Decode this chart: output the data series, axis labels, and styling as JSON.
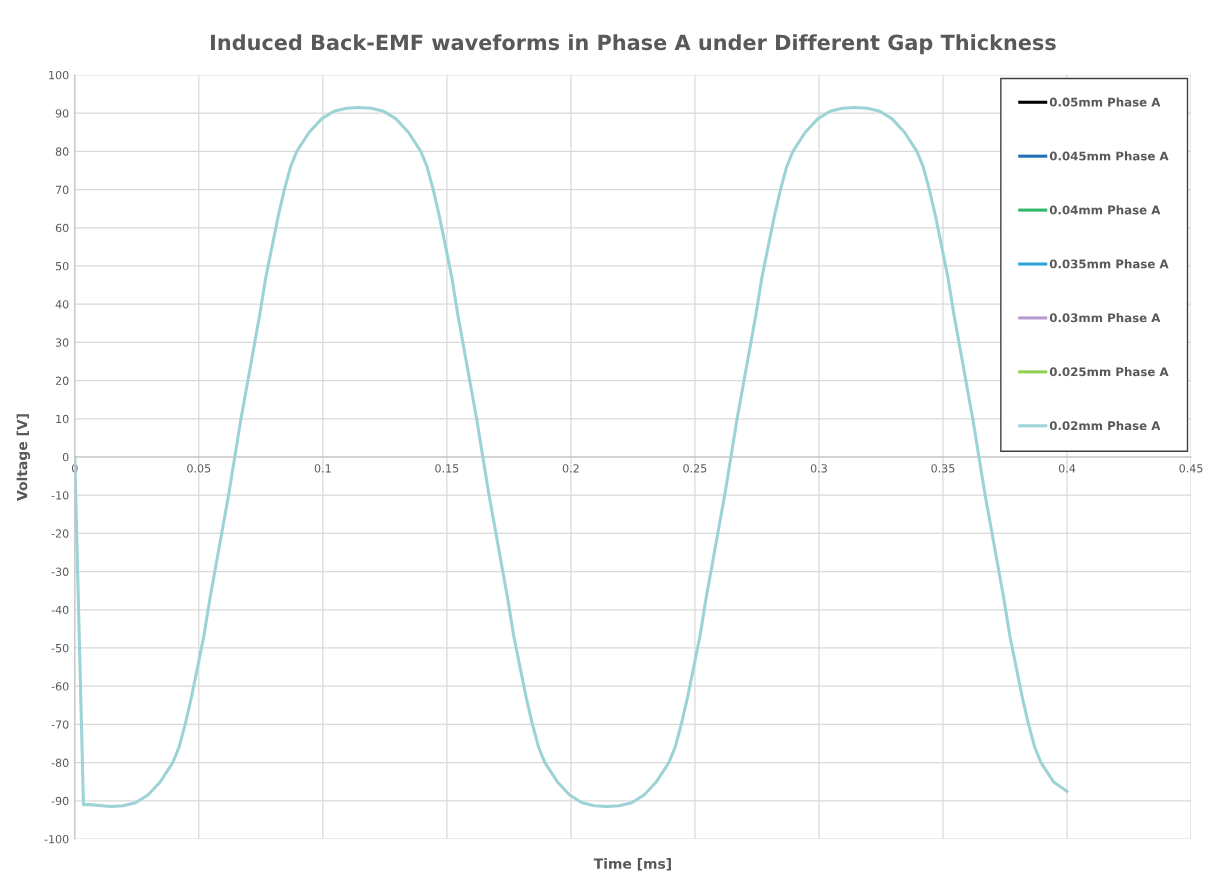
{
  "chart_data": {
    "type": "line",
    "title": "Induced Back-EMF waveforms in Phase A under Different Gap Thickness",
    "xlabel": "Time [ms]",
    "ylabel": "Voltage [V]",
    "x": [
      0,
      0.0035,
      0.006,
      0.0145,
      0.0195,
      0.0245,
      0.0295,
      0.0345,
      0.0395,
      0.042,
      0.0445,
      0.047,
      0.0495,
      0.052,
      0.0545,
      0.057,
      0.0595,
      0.062,
      0.0645,
      0.067,
      0.0695,
      0.072,
      0.0745,
      0.077,
      0.0795,
      0.082,
      0.0845,
      0.087,
      0.0895,
      0.0945,
      0.0995,
      0.1045,
      0.1095,
      0.1145,
      0.1195,
      0.1245,
      0.1295,
      0.1345,
      0.1395,
      0.142,
      0.1445,
      0.147,
      0.1495,
      0.152,
      0.1545,
      0.157,
      0.1595,
      0.162,
      0.1645,
      0.167,
      0.1695,
      0.172,
      0.1745,
      0.177,
      0.1795,
      0.182,
      0.1845,
      0.187,
      0.1895,
      0.1945,
      0.1995,
      0.2045,
      0.2095,
      0.2145,
      0.2195,
      0.2245,
      0.2295,
      0.2345,
      0.2395,
      0.242,
      0.2445,
      0.247,
      0.2495,
      0.252,
      0.2545,
      0.257,
      0.2595,
      0.262,
      0.2645,
      0.267,
      0.2695,
      0.272,
      0.2745,
      0.277,
      0.2795,
      0.282,
      0.2845,
      0.287,
      0.2895,
      0.2945,
      0.2995,
      0.3045,
      0.3095,
      0.3145,
      0.3195,
      0.3245,
      0.3295,
      0.3345,
      0.3395,
      0.342,
      0.3445,
      0.347,
      0.3495,
      0.352,
      0.3545,
      0.357,
      0.3595,
      0.362,
      0.3645,
      0.367,
      0.3695,
      0.372,
      0.3745,
      0.377,
      0.3795,
      0.382,
      0.3845,
      0.387,
      0.3895,
      0.3945,
      0.4
    ],
    "series": [
      {
        "name": "0.05mm Phase A",
        "color": "#000000",
        "values": [
          null,
          null,
          null,
          null,
          null,
          null,
          null,
          null,
          null,
          null,
          null,
          null,
          null,
          null,
          null,
          null,
          null,
          null,
          null,
          null,
          null,
          null,
          null,
          null,
          null,
          null,
          null,
          null,
          null,
          null,
          null,
          null,
          null,
          null,
          null,
          null,
          null,
          null,
          null,
          null,
          null,
          null,
          null,
          null,
          null,
          null,
          null,
          null,
          null,
          null,
          null,
          null,
          null,
          null,
          null,
          null,
          null,
          null,
          null,
          null,
          null,
          null,
          null,
          null,
          null,
          null,
          null,
          null,
          null,
          null,
          null,
          null,
          null,
          null,
          null,
          null,
          null,
          null,
          null,
          null,
          null,
          null,
          null,
          null,
          null,
          null,
          null,
          null,
          null,
          null,
          null,
          null,
          null,
          null,
          null,
          null,
          null,
          null,
          null,
          null,
          null,
          null,
          null,
          null,
          null,
          null,
          null,
          null,
          null,
          null,
          null,
          null,
          null,
          null,
          null,
          null,
          null,
          null,
          null,
          null,
          null
        ]
      },
      {
        "name": "0.045mm Phase A",
        "color": "#1f6fb4",
        "values": [
          null,
          null,
          null,
          null,
          null,
          null,
          null,
          null,
          null,
          null,
          null,
          null,
          null,
          null,
          null,
          null,
          null,
          null,
          null,
          null,
          null,
          null,
          null,
          null,
          null,
          null,
          null,
          null,
          null,
          null,
          null,
          null,
          null,
          null,
          null,
          null,
          null,
          null,
          null,
          null,
          null,
          null,
          null,
          null,
          null,
          null,
          null,
          null,
          null,
          null,
          null,
          null,
          null,
          null,
          null,
          null,
          null,
          null,
          null,
          null,
          null,
          null,
          null,
          null,
          null,
          null,
          null,
          null,
          null,
          null,
          null,
          null,
          null,
          null,
          null,
          null,
          null,
          null,
          null,
          null,
          null,
          null,
          null,
          null,
          null,
          null,
          null,
          null,
          null,
          null,
          null,
          null,
          null,
          null,
          null,
          null,
          null,
          null,
          null,
          null,
          null,
          null,
          null,
          null,
          null,
          null,
          null,
          null,
          null,
          null,
          null,
          null,
          null,
          null,
          null,
          null,
          null,
          null,
          null,
          null,
          null
        ]
      },
      {
        "name": "0.04mm Phase A",
        "color": "#2fb866",
        "values": [
          null,
          null,
          null,
          null,
          null,
          null,
          null,
          null,
          null,
          null,
          null,
          null,
          null,
          null,
          null,
          null,
          null,
          null,
          null,
          null,
          null,
          null,
          null,
          null,
          null,
          null,
          null,
          null,
          null,
          null,
          null,
          null,
          null,
          null,
          null,
          null,
          null,
          null,
          null,
          null,
          null,
          null,
          null,
          null,
          null,
          null,
          null,
          null,
          null,
          null,
          null,
          null,
          null,
          null,
          null,
          null,
          null,
          null,
          null,
          null,
          null,
          null,
          null,
          null,
          null,
          null,
          null,
          null,
          null,
          null,
          null,
          null,
          null,
          null,
          null,
          null,
          null,
          null,
          null,
          null,
          null,
          null,
          null,
          null,
          null,
          null,
          null,
          null,
          null,
          null,
          null,
          null,
          null,
          null,
          null,
          null,
          null,
          null,
          null,
          null,
          null,
          null,
          null,
          null,
          null,
          null,
          null,
          null,
          null,
          null,
          null,
          null,
          null,
          null,
          null,
          null,
          null,
          null,
          null,
          null,
          null
        ]
      },
      {
        "name": "0.035mm Phase A",
        "color": "#2ea3da",
        "values": [
          null,
          null,
          null,
          null,
          null,
          null,
          null,
          null,
          null,
          null,
          null,
          null,
          null,
          null,
          null,
          null,
          null,
          null,
          null,
          null,
          null,
          null,
          null,
          null,
          null,
          null,
          null,
          null,
          null,
          null,
          null,
          null,
          null,
          null,
          null,
          null,
          null,
          null,
          null,
          null,
          null,
          null,
          null,
          null,
          null,
          null,
          null,
          null,
          null,
          null,
          null,
          null,
          null,
          null,
          null,
          null,
          null,
          null,
          null,
          null,
          null,
          null,
          null,
          null,
          null,
          null,
          null,
          null,
          null,
          null,
          null,
          null,
          null,
          null,
          null,
          null,
          null,
          null,
          null,
          null,
          null,
          null,
          null,
          null,
          null,
          null,
          null,
          null,
          null,
          null,
          null,
          null,
          null,
          null,
          null,
          null,
          null,
          null,
          null,
          null,
          null,
          null,
          null,
          null,
          null,
          null,
          null,
          null,
          null,
          null,
          null,
          null,
          null,
          null,
          null,
          null,
          null,
          null,
          null,
          null,
          null
        ]
      },
      {
        "name": "0.03mm Phase A",
        "color": "#b59ad0",
        "values": [
          null,
          null,
          null,
          null,
          null,
          null,
          null,
          null,
          null,
          null,
          null,
          null,
          null,
          null,
          null,
          null,
          null,
          null,
          null,
          null,
          null,
          null,
          null,
          null,
          null,
          null,
          null,
          null,
          null,
          null,
          null,
          null,
          null,
          null,
          null,
          null,
          null,
          null,
          null,
          null,
          null,
          null,
          null,
          null,
          null,
          null,
          null,
          null,
          null,
          null,
          null,
          null,
          null,
          null,
          null,
          null,
          null,
          null,
          null,
          null,
          null,
          null,
          null,
          null,
          null,
          null,
          null,
          null,
          null,
          null,
          null,
          null,
          null,
          null,
          null,
          null,
          null,
          null,
          null,
          null,
          null,
          null,
          null,
          null,
          null,
          null,
          null,
          null,
          null,
          null,
          null,
          null,
          null,
          null,
          null,
          null,
          null,
          null,
          null,
          null,
          null,
          null,
          null,
          null,
          null,
          null,
          null,
          null,
          null,
          null,
          null,
          null,
          null,
          null,
          null,
          null,
          null,
          null,
          null,
          null,
          null
        ]
      },
      {
        "name": "0.025mm Phase A",
        "color": "#8fd14f",
        "values": [
          null,
          null,
          null,
          null,
          null,
          null,
          null,
          null,
          null,
          null,
          null,
          null,
          null,
          null,
          null,
          null,
          null,
          null,
          null,
          null,
          null,
          null,
          null,
          null,
          null,
          null,
          null,
          null,
          null,
          null,
          null,
          null,
          null,
          null,
          null,
          null,
          null,
          null,
          null,
          null,
          null,
          null,
          null,
          null,
          null,
          null,
          null,
          null,
          null,
          null,
          null,
          null,
          null,
          null,
          null,
          null,
          null,
          null,
          null,
          null,
          null,
          null,
          null,
          null,
          null,
          null,
          null,
          null,
          null,
          null,
          null,
          null,
          null,
          null,
          null,
          null,
          null,
          null,
          null,
          null,
          null,
          null,
          null,
          null,
          null,
          null,
          null,
          null,
          null,
          null,
          null,
          null,
          null,
          null,
          null,
          null,
          null,
          null,
          null,
          null,
          null,
          null,
          null,
          null,
          null,
          null,
          null,
          null,
          null,
          null,
          null,
          null,
          null,
          null,
          null,
          null,
          null,
          null,
          null,
          null,
          null
        ]
      },
      {
        "name": "0.02mm Phase A",
        "color": "#9dd3d6",
        "values": [
          0,
          -91,
          -91,
          -91.5,
          -91.3,
          -90.5,
          -88.5,
          -85,
          -80,
          -76,
          -70,
          -63,
          -55,
          -47,
          -37,
          -28,
          -19,
          -10,
          0,
          10,
          19,
          28,
          37,
          47,
          55,
          63,
          70,
          76,
          80,
          85,
          88.5,
          90.5,
          91.3,
          91.5,
          91.3,
          90.5,
          88.5,
          85,
          80,
          76,
          70,
          63,
          55,
          47,
          37,
          28,
          19,
          10,
          0,
          -10,
          -19,
          -28,
          -37,
          -47,
          -55,
          -63,
          -70,
          -76,
          -80,
          -85,
          -88.5,
          -90.5,
          -91.3,
          -91.5,
          -91.3,
          -90.5,
          -88.5,
          -85,
          -80,
          -76,
          -70,
          -63,
          -55,
          -47,
          -37,
          -28,
          -19,
          -10,
          0,
          10,
          19,
          28,
          37,
          47,
          55,
          63,
          70,
          76,
          80,
          85,
          88.5,
          90.5,
          91.3,
          91.5,
          91.3,
          90.5,
          88.5,
          85,
          80,
          76,
          70,
          63,
          55,
          47,
          37,
          28,
          19,
          10,
          0,
          -10,
          -19,
          -28,
          -37,
          -47,
          -55,
          -63,
          -70,
          -76,
          -80,
          -85,
          -87.5
        ]
      }
    ],
    "xlim": [
      0,
      0.45
    ],
    "xticks": [
      0,
      0.05,
      0.1,
      0.15,
      0.2,
      0.25,
      0.3,
      0.35,
      0.4,
      0.45
    ],
    "ylim": [
      -100,
      100
    ],
    "yticks": [
      -100,
      -90,
      -80,
      -70,
      -60,
      -50,
      -40,
      -30,
      -20,
      -10,
      0,
      10,
      20,
      30,
      40,
      50,
      60,
      70,
      80,
      90,
      100
    ],
    "grid": true,
    "legend": "top right",
    "marker": "none",
    "line_style": "solid"
  }
}
